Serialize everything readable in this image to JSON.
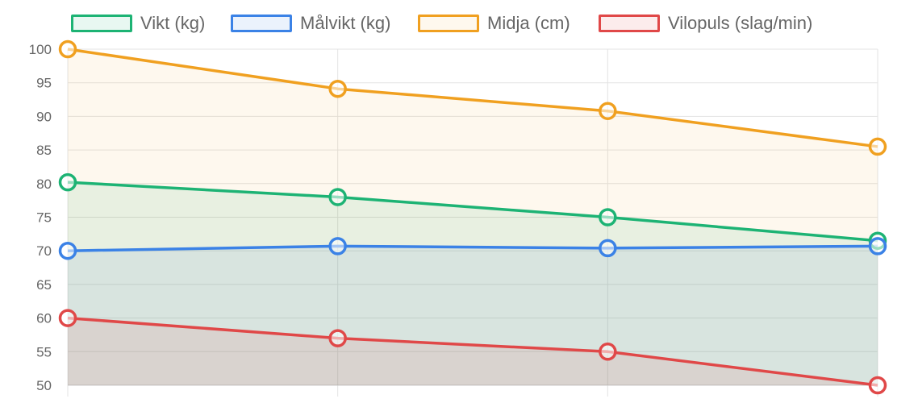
{
  "chart_data": {
    "type": "line",
    "categories": [
      "",
      "",
      "",
      ""
    ],
    "ylim": [
      50,
      100
    ],
    "y_ticks": [
      100,
      95,
      90,
      85,
      80,
      75,
      70,
      65,
      60,
      55,
      50
    ],
    "grid": true,
    "legend_position": "top",
    "filled": true,
    "series": [
      {
        "name": "Vikt (kg)",
        "values": [
          80.2,
          78.0,
          75.0,
          71.5
        ],
        "color": "#1db374",
        "fill": "rgba(29,179,116,0.10)"
      },
      {
        "name": "Målvikt (kg)",
        "values": [
          70.0,
          70.7,
          70.4,
          70.7
        ],
        "color": "#3b82e6",
        "fill": "rgba(59,130,230,0.10)"
      },
      {
        "name": "Midja (cm)",
        "values": [
          100.0,
          94.1,
          90.8,
          85.5
        ],
        "color": "#f0a020",
        "fill": "rgba(240,160,32,0.08)"
      },
      {
        "name": "Vilopuls (slag/min)",
        "values": [
          60.0,
          57.0,
          55.0,
          50.0
        ],
        "color": "#e04848",
        "fill": "rgba(224,72,72,0.10)"
      }
    ]
  }
}
